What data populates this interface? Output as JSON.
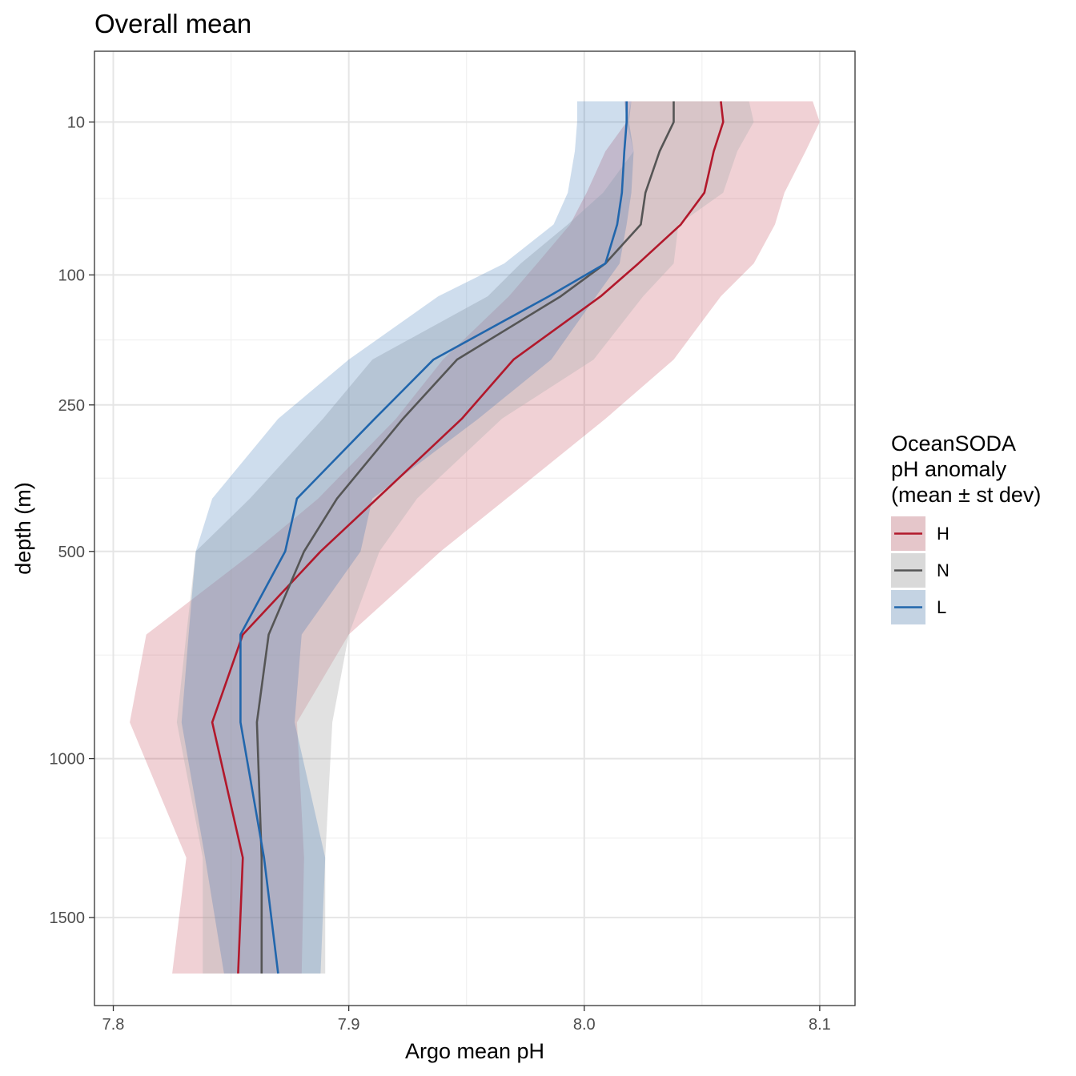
{
  "chart_data": {
    "type": "line",
    "title": "Overall mean",
    "xlabel": "Argo mean pH",
    "ylabel": "depth (m)",
    "xlim": [
      7.792,
      8.115
    ],
    "x_ticks": [
      7.8,
      7.9,
      8.0,
      8.1
    ],
    "x_tick_labels": [
      "7.8",
      "7.9",
      "8.0",
      "8.1"
    ],
    "y_scale": "sqrt",
    "y_reversed": true,
    "ylim": [
      0,
      1820
    ],
    "y_ticks": [
      10,
      100,
      250,
      500,
      1000,
      1500
    ],
    "y_tick_labels": [
      "10",
      "100",
      "250",
      "500",
      "1000",
      "1500"
    ],
    "grid": true,
    "legend": {
      "title_lines": [
        "OceanSODA",
        "pH anomaly",
        "(mean ± st dev)"
      ],
      "position": "right"
    },
    "series": [
      {
        "name": "H",
        "color": "#b2182b",
        "fill": "#b2182b",
        "depth": [
          5,
          10,
          20,
          40,
          60,
          90,
          120,
          190,
          270,
          400,
          500,
          680,
          900,
          1300,
          1700
        ],
        "mean": [
          8.058,
          8.059,
          8.055,
          8.051,
          8.041,
          8.023,
          8.007,
          7.97,
          7.948,
          7.912,
          7.888,
          7.855,
          7.842,
          7.855,
          7.853
        ],
        "low": [
          8.017,
          8.018,
          8.009,
          8.001,
          7.994,
          7.98,
          7.968,
          7.94,
          7.92,
          7.887,
          7.86,
          7.814,
          7.807,
          7.831,
          7.825
        ],
        "high": [
          8.097,
          8.1,
          8.094,
          8.085,
          8.081,
          8.072,
          8.058,
          8.038,
          8.009,
          7.967,
          7.939,
          7.9,
          7.878,
          7.881,
          7.88
        ]
      },
      {
        "name": "N",
        "color": "#555555",
        "fill": "#b3b3b3",
        "depth": [
          5,
          10,
          20,
          40,
          60,
          90,
          120,
          190,
          270,
          400,
          500,
          680,
          900,
          1300,
          1700
        ],
        "mean": [
          8.038,
          8.038,
          8.032,
          8.026,
          8.024,
          8.009,
          7.99,
          7.946,
          7.923,
          7.895,
          7.881,
          7.866,
          7.861,
          7.863,
          7.863
        ],
        "low": [
          8.02,
          8.018,
          8.021,
          8.008,
          7.993,
          7.973,
          7.959,
          7.91,
          7.889,
          7.858,
          7.835,
          7.831,
          7.827,
          7.838,
          7.838
        ],
        "high": [
          8.07,
          8.072,
          8.065,
          8.059,
          8.04,
          8.038,
          8.025,
          8.004,
          7.965,
          7.929,
          7.913,
          7.9,
          7.893,
          7.89,
          7.89
        ]
      },
      {
        "name": "L",
        "color": "#2166ac",
        "fill": "#2166ac",
        "depth": [
          5,
          10,
          20,
          40,
          60,
          90,
          120,
          190,
          270,
          400,
          500,
          680,
          900,
          1300,
          1700
        ],
        "mean": [
          8.018,
          8.018,
          8.017,
          8.016,
          8.014,
          8.009,
          7.985,
          7.936,
          7.911,
          7.878,
          7.873,
          7.854,
          7.854,
          7.864,
          7.87
        ],
        "low": [
          7.997,
          7.997,
          7.996,
          7.993,
          7.987,
          7.966,
          7.938,
          7.9,
          7.87,
          7.842,
          7.835,
          7.832,
          7.829,
          7.839,
          7.847
        ],
        "high": [
          8.02,
          8.019,
          8.021,
          8.02,
          8.018,
          8.015,
          8.005,
          7.986,
          7.955,
          7.91,
          7.905,
          7.88,
          7.877,
          7.89,
          7.888
        ]
      }
    ]
  }
}
